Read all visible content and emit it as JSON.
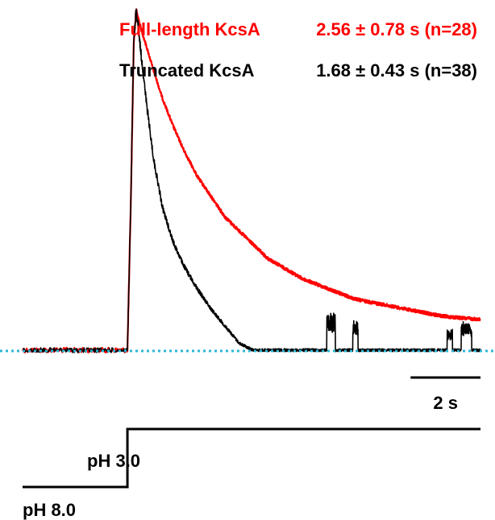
{
  "chart_data": {
    "type": "line",
    "title": "",
    "xlabel": "",
    "ylabel": "",
    "x_unit": "s",
    "xlim": [
      -3.0,
      10.1
    ],
    "ylim": [
      -0.03,
      1.0
    ],
    "stim_time": 0.0,
    "legend": {
      "placement": "top-right"
    },
    "series": [
      {
        "name": "Full-length KcsA",
        "stat": "2.56 ± 0.78 s (n=28)",
        "color": "#ff0000",
        "x": [
          0.0,
          0.1,
          0.18,
          0.25,
          0.3,
          0.4,
          0.55,
          0.75,
          1.0,
          1.3,
          1.6,
          2.0,
          2.4,
          2.8,
          3.2,
          3.6,
          4.0,
          4.5,
          5.0,
          5.5,
          6.0,
          6.5,
          7.0,
          7.5,
          8.0,
          8.5,
          9.0,
          9.5,
          10.1
        ],
        "y": [
          0.0,
          0.45,
          0.9,
          1.0,
          0.98,
          0.94,
          0.89,
          0.82,
          0.74,
          0.66,
          0.59,
          0.51,
          0.45,
          0.39,
          0.35,
          0.31,
          0.27,
          0.24,
          0.21,
          0.19,
          0.17,
          0.15,
          0.14,
          0.13,
          0.12,
          0.11,
          0.1,
          0.095,
          0.09
        ]
      },
      {
        "name": "Truncated KcsA",
        "stat": "1.68 ± 0.43 s (n=38)",
        "color": "#000000",
        "x": [
          0.0,
          0.1,
          0.18,
          0.25,
          0.3,
          0.4,
          0.55,
          0.75,
          1.0,
          1.3,
          1.6,
          2.0,
          2.4,
          2.8,
          3.2,
          3.6,
          4.0,
          4.5,
          5.0,
          5.5,
          6.0,
          6.5,
          7.0,
          7.5,
          8.0,
          8.5,
          9.0,
          9.5,
          10.1
        ],
        "y": [
          0.0,
          0.45,
          0.9,
          1.0,
          0.96,
          0.86,
          0.72,
          0.56,
          0.42,
          0.32,
          0.25,
          0.18,
          0.12,
          0.07,
          0.02,
          0.0,
          0.0,
          0.0,
          0.0,
          0.0,
          0.0,
          0.0,
          0.0,
          0.0,
          0.0,
          0.0,
          0.0,
          0.0,
          0.0
        ]
      }
    ],
    "baseline": {
      "y": 0.0,
      "color": "#2ab7d6",
      "style": "dotted"
    },
    "scale_bar": {
      "length_s": 2,
      "label": "2 s"
    },
    "protocol": {
      "levels": [
        {
          "label": "pH 8.0",
          "t_start": -3.0,
          "t_end": 0.0
        },
        {
          "label": "pH 3.0",
          "t_start": 0.0,
          "t_end": 10.1
        }
      ]
    }
  }
}
